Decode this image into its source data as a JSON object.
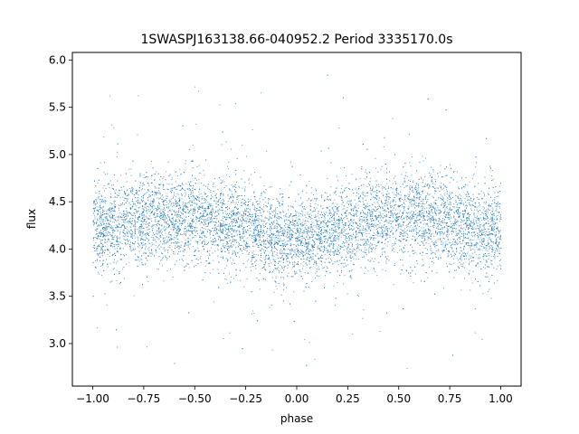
{
  "chart_data": {
    "type": "scatter",
    "title": "1SWASPJ163138.66-040952.2 Period 3335170.0s",
    "xlabel": "phase",
    "ylabel": "flux",
    "xlim": [
      -1.1,
      1.1
    ],
    "ylim": [
      2.55,
      6.08
    ],
    "xticks": [
      -1.0,
      -0.75,
      -0.5,
      -0.25,
      0.0,
      0.25,
      0.5,
      0.75,
      1.0
    ],
    "xtick_labels": [
      "−1.00",
      "−0.75",
      "−0.50",
      "−0.25",
      "0.00",
      "0.25",
      "0.50",
      "0.75",
      "1.00"
    ],
    "yticks": [
      3.0,
      3.5,
      4.0,
      4.5,
      5.0,
      5.5,
      6.0
    ],
    "ytick_labels": [
      "3.0",
      "3.5",
      "4.0",
      "4.5",
      "5.0",
      "5.5",
      "6.0"
    ],
    "grid": false,
    "point_color": "#1f77b4",
    "series": [
      {
        "x": [
          -1.0,
          -0.9,
          -0.8,
          -0.7,
          -0.6,
          -0.5,
          -0.4,
          -0.3,
          -0.2,
          -0.1,
          0.0,
          0.1,
          0.2,
          0.3,
          0.4,
          0.5,
          0.6,
          0.7,
          0.8,
          0.9,
          1.0
        ],
        "y_center": [
          4.22,
          4.27,
          4.3,
          4.35,
          4.33,
          4.32,
          4.3,
          4.27,
          4.2,
          4.12,
          4.08,
          4.12,
          4.2,
          4.28,
          4.33,
          4.32,
          4.33,
          4.3,
          4.25,
          4.22,
          4.22
        ],
        "y_spread": [
          0.28,
          0.28,
          0.27,
          0.27,
          0.27,
          0.28,
          0.27,
          0.27,
          0.26,
          0.25,
          0.25,
          0.25,
          0.26,
          0.27,
          0.27,
          0.28,
          0.28,
          0.27,
          0.27,
          0.27,
          0.28
        ],
        "y_min": 2.72,
        "y_max": 5.9
      }
    ]
  }
}
